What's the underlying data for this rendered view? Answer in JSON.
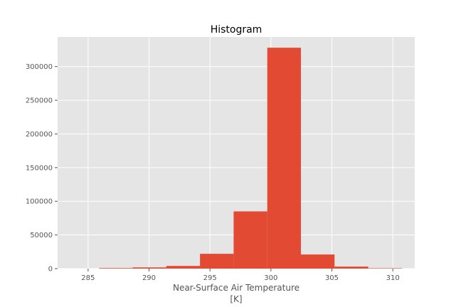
{
  "chart_data": {
    "type": "bar",
    "title": "Histogram",
    "xlabel_lines": [
      "Near-Surface Air Temperature",
      "[K]"
    ],
    "ylabel": "",
    "xlim": [
      282.5,
      311.8
    ],
    "ylim": [
      0,
      344000
    ],
    "xticks": [
      285,
      290,
      295,
      300,
      305,
      310
    ],
    "yticks": [
      0,
      50000,
      100000,
      150000,
      200000,
      250000,
      300000
    ],
    "bin_edges": [
      285.9,
      288.66,
      291.42,
      294.18,
      296.94,
      299.7,
      302.46,
      305.22,
      307.98,
      310.74
    ],
    "values": [
      800,
      1800,
      4000,
      22000,
      85000,
      328000,
      21000,
      3000,
      600
    ],
    "grid": true,
    "colors": {
      "bar": "#E24A33",
      "background": "#E5E5E5",
      "grid": "#FFFFFF",
      "tick_text": "#555555"
    }
  }
}
